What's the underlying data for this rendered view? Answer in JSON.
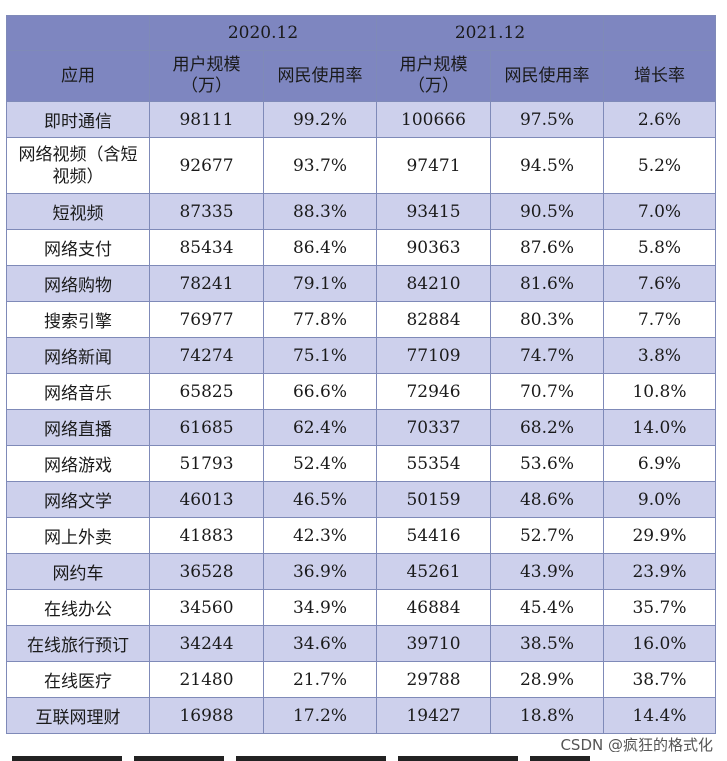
{
  "table": {
    "years": [
      "2020.12",
      "2021.12"
    ],
    "headers": {
      "app": "应用",
      "users_2020": "用户规模（万）",
      "rate_2020": "网民使用率",
      "users_2021": "用户规模（万）",
      "rate_2021": "网民使用率",
      "growth": "增长率"
    },
    "rows": [
      {
        "app": "即时通信",
        "u2020": "98111",
        "r2020": "99.2%",
        "u2021": "100666",
        "r2021": "97.5%",
        "growth": "2.6%"
      },
      {
        "app": "网络视频（含短视频）",
        "u2020": "92677",
        "r2020": "93.7%",
        "u2021": "97471",
        "r2021": "94.5%",
        "growth": "5.2%"
      },
      {
        "app": "短视频",
        "u2020": "87335",
        "r2020": "88.3%",
        "u2021": "93415",
        "r2021": "90.5%",
        "growth": "7.0%"
      },
      {
        "app": "网络支付",
        "u2020": "85434",
        "r2020": "86.4%",
        "u2021": "90363",
        "r2021": "87.6%",
        "growth": "5.8%"
      },
      {
        "app": "网络购物",
        "u2020": "78241",
        "r2020": "79.1%",
        "u2021": "84210",
        "r2021": "81.6%",
        "growth": "7.6%"
      },
      {
        "app": "搜索引擎",
        "u2020": "76977",
        "r2020": "77.8%",
        "u2021": "82884",
        "r2021": "80.3%",
        "growth": "7.7%"
      },
      {
        "app": "网络新闻",
        "u2020": "74274",
        "r2020": "75.1%",
        "u2021": "77109",
        "r2021": "74.7%",
        "growth": "3.8%"
      },
      {
        "app": "网络音乐",
        "u2020": "65825",
        "r2020": "66.6%",
        "u2021": "72946",
        "r2021": "70.7%",
        "growth": "10.8%"
      },
      {
        "app": "网络直播",
        "u2020": "61685",
        "r2020": "62.4%",
        "u2021": "70337",
        "r2021": "68.2%",
        "growth": "14.0%"
      },
      {
        "app": "网络游戏",
        "u2020": "51793",
        "r2020": "52.4%",
        "u2021": "55354",
        "r2021": "53.6%",
        "growth": "6.9%"
      },
      {
        "app": "网络文学",
        "u2020": "46013",
        "r2020": "46.5%",
        "u2021": "50159",
        "r2021": "48.6%",
        "growth": "9.0%"
      },
      {
        "app": "网上外卖",
        "u2020": "41883",
        "r2020": "42.3%",
        "u2021": "54416",
        "r2021": "52.7%",
        "growth": "29.9%"
      },
      {
        "app": "网约车",
        "u2020": "36528",
        "r2020": "36.9%",
        "u2021": "45261",
        "r2021": "43.9%",
        "growth": "23.9%"
      },
      {
        "app": "在线办公",
        "u2020": "34560",
        "r2020": "34.9%",
        "u2021": "46884",
        "r2021": "45.4%",
        "growth": "35.7%"
      },
      {
        "app": "在线旅行预订",
        "u2020": "34244",
        "r2020": "34.6%",
        "u2021": "39710",
        "r2021": "38.5%",
        "growth": "16.0%"
      },
      {
        "app": "在线医疗",
        "u2020": "21480",
        "r2020": "21.7%",
        "u2021": "29788",
        "r2021": "28.9%",
        "growth": "38.7%"
      },
      {
        "app": "互联网理财",
        "u2020": "16988",
        "r2020": "17.2%",
        "u2021": "19427",
        "r2021": "18.8%",
        "growth": "14.4%"
      }
    ]
  },
  "watermark": "CSDN @疯狂的格式化"
}
